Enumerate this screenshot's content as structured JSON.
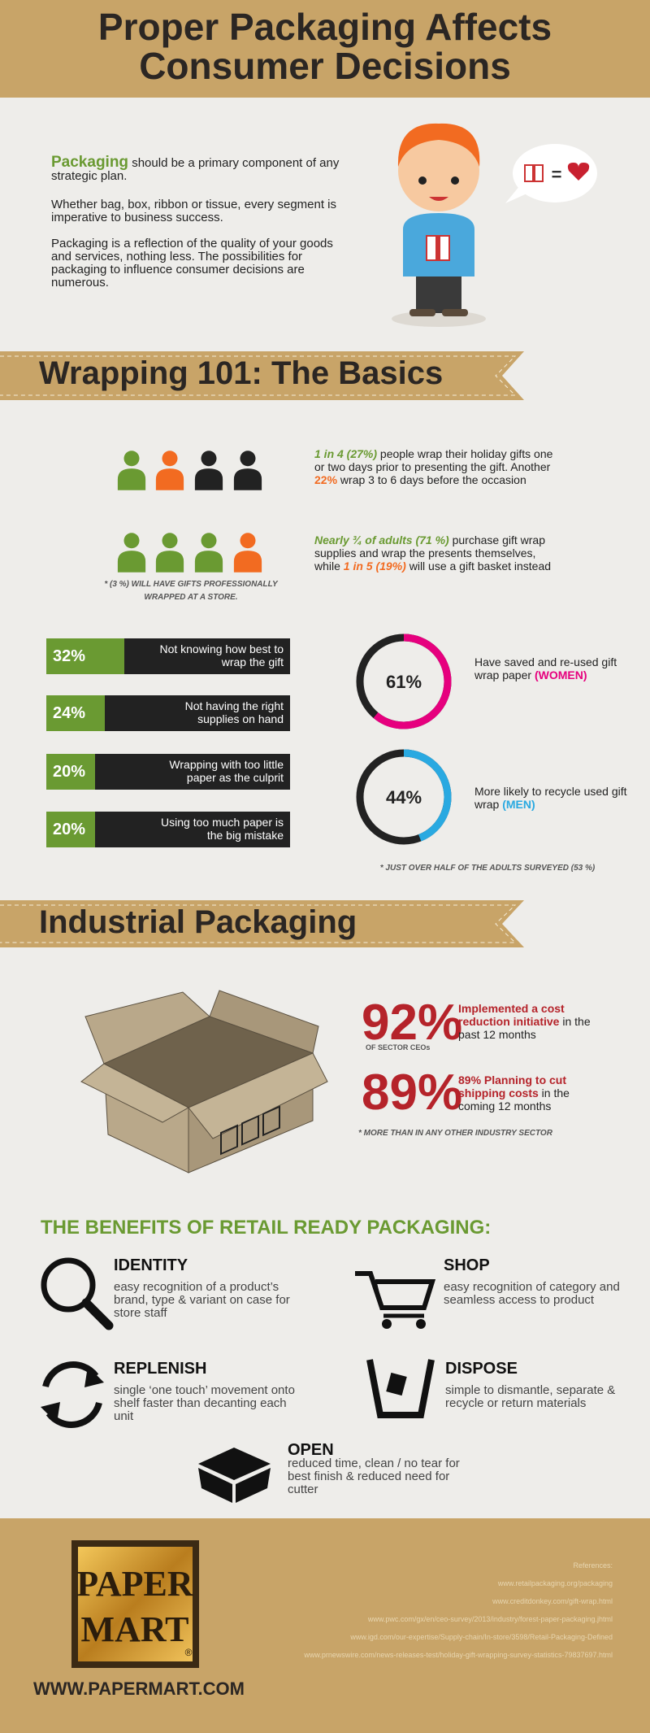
{
  "header": {
    "title_line1": "Proper Packaging Affects",
    "title_line2": "Consumer Decisions"
  },
  "intro": {
    "p1": [
      "Packaging",
      " should be a primary component of any strategic plan."
    ],
    "p2": "Whether bag, box, ribbon or tissue, every segment is imperative to business success.",
    "p3": "Packaging is a reflection of the quality of your goods and services, nothing less. The possibilities for packaging to influence consumer decisions are numerous.",
    "bubble_equals": "="
  },
  "wrapping": {
    "title": "Wrapping 101: The Basics",
    "stat1": [
      "1 in 4 (27%)",
      " people wrap their holiday gifts one or two days prior to presenting the gift. Another ",
      "22%",
      " wrap 3 to 6 days before the occasion"
    ],
    "stat2": [
      "Nearly ¾ of adults (71 %)",
      " purchase gift wrap supplies and wrap the presents themselves, while ",
      "1 in 5 (19%)",
      " will use a gift basket instead"
    ],
    "note1": "* (3 %) WILL HAVE GIFTS PROFESSIONALLY WRAPPED AT A STORE.",
    "bars": [
      {
        "value": 32,
        "label": "32%",
        "text": "Not knowing how best to wrap the gift"
      },
      {
        "value": 24,
        "label": "24%",
        "text": "Not having the right supplies on hand"
      },
      {
        "value": 20,
        "label": "20%",
        "text": "Wrapping with too little paper as the culprit"
      },
      {
        "value": 20,
        "label": "20%",
        "text": "Using too much paper is the big mistake"
      }
    ],
    "donuts": [
      {
        "value": 61,
        "label": "61%",
        "parts": [
          "Have saved and re-used gift wrap paper ",
          "(WOMEN)"
        ]
      },
      {
        "value": 44,
        "label": "44%",
        "parts": [
          "More likely to recycle used gift wrap ",
          "(MEN)"
        ]
      }
    ],
    "note2": "* JUST OVER HALF OF THE ADULTS SURVEYED (53 %)"
  },
  "industrial": {
    "title": "Industrial Packaging",
    "stats": [
      {
        "label": "92%",
        "sub": "OF SECTOR CEOs",
        "parts": [
          "Implemented a cost reduction initiative",
          " in the past 12 months"
        ]
      },
      {
        "label": "89%",
        "parts": [
          "89% Planning to cut shipping costs",
          " in the coming 12 months"
        ]
      }
    ],
    "note": "* MORE THAN IN ANY OTHER INDUSTRY SECTOR"
  },
  "benefits": {
    "title": "THE BENEFITS OF RETAIL READY PACKAGING:",
    "items": [
      {
        "heading": "IDENTITY",
        "text": "easy recognition of a product’s brand, type & variant on case for store staff"
      },
      {
        "heading": "SHOP",
        "text": "easy recognition of category and seamless access to product"
      },
      {
        "heading": "REPLENISH",
        "text": "single ‘one touch’ movement onto shelf faster than decanting each unit"
      },
      {
        "heading": "DISPOSE",
        "text": "simple to dismantle, separate & recycle or return materials"
      },
      {
        "heading": "OPEN",
        "text": "reduced time, clean / no tear for best finish & reduced need for cutter"
      }
    ]
  },
  "footer": {
    "logo": [
      "PAPER",
      "MART",
      "®"
    ],
    "url": "WWW.PAPERMART.COM",
    "references_title": "References:",
    "references": [
      "www.retailpackaging.org/packaging",
      "www.creditdonkey.com/gift-wrap.html",
      "www.pwc.com/gx/en/ceo-survey/2013/industry/forest-paper-packaging.jhtml",
      "www.igd.com/our-expertise/Supply-chain/In-store/3598/Retail-Packaging-Defined",
      "www.prnewswire.com/news-releases-test/holiday-gift-wrapping-survey-statistics-79837697.html"
    ]
  }
}
